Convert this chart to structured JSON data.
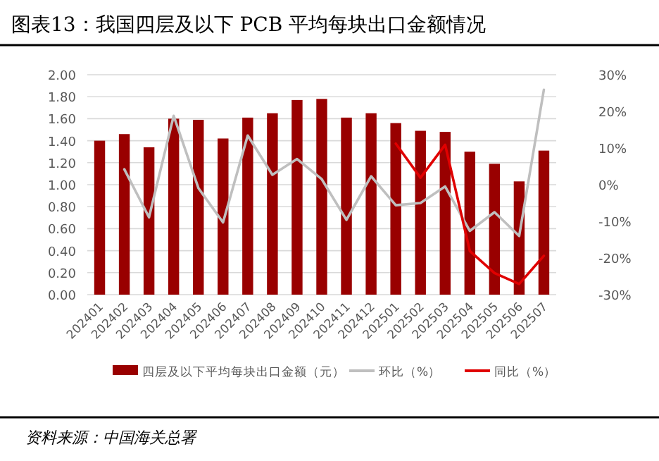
{
  "chart_data": {
    "type": "bar",
    "title": "图表13：我国四层及以下 PCB 平均每块出口金额情况",
    "categories": [
      "202401",
      "202402",
      "202403",
      "202404",
      "202405",
      "202406",
      "202407",
      "202408",
      "202409",
      "202410",
      "202411",
      "202412",
      "202501",
      "202502",
      "202503",
      "202504",
      "202505",
      "202506",
      "202507"
    ],
    "series": [
      {
        "name": "四层及以下平均每块出口金额（元）",
        "color": "#990000",
        "values": [
          1.4,
          1.46,
          1.34,
          1.6,
          1.59,
          1.42,
          1.61,
          1.65,
          1.77,
          1.78,
          1.61,
          1.65,
          1.56,
          1.49,
          1.48,
          1.3,
          1.19,
          1.03,
          1.31
        ]
      },
      {
        "name": "环比（%）",
        "type": "line",
        "axis": "y2",
        "color": "#bfbfbf",
        "values": [
          null,
          4.2,
          -8.9,
          18.8,
          -0.9,
          -10.3,
          13.4,
          2.7,
          7.0,
          1.5,
          -9.6,
          2.3,
          -5.6,
          -5.0,
          -0.5,
          -12.6,
          -7.5,
          -14.0,
          25.9
        ]
      },
      {
        "name": "同比（%）",
        "type": "line",
        "axis": "y2",
        "color": "#e00000",
        "values": [
          null,
          null,
          null,
          null,
          null,
          null,
          null,
          null,
          null,
          null,
          null,
          null,
          11.2,
          1.9,
          10.9,
          -18.1,
          -24.1,
          -27.1,
          -19.4
        ]
      }
    ],
    "ylim": [
      0,
      2
    ],
    "yticks": [
      {
        "value": 0,
        "label": "0.00"
      },
      {
        "value": 0.2,
        "label": "0.20"
      },
      {
        "value": 0.4,
        "label": "0.40"
      },
      {
        "value": 0.6,
        "label": "0.60"
      },
      {
        "value": 0.8,
        "label": "0.80"
      },
      {
        "value": 1,
        "label": "1.00"
      },
      {
        "value": 1.2,
        "label": "1.20"
      },
      {
        "value": 1.4,
        "label": "1.40"
      },
      {
        "value": 1.6,
        "label": "1.60"
      },
      {
        "value": 1.8,
        "label": "1.80"
      },
      {
        "value": 2,
        "label": "2.00"
      }
    ],
    "y2lim": [
      -30,
      30
    ],
    "y2ticks": [
      {
        "value": -30,
        "label": "-30%"
      },
      {
        "value": -20,
        "label": "-20%"
      },
      {
        "value": -10,
        "label": "-10%"
      },
      {
        "value": 0,
        "label": "0%"
      },
      {
        "value": 10,
        "label": "10%"
      },
      {
        "value": 20,
        "label": "20%"
      },
      {
        "value": 30,
        "label": "30%"
      }
    ],
    "grid": "y",
    "legend": "bottom",
    "annotations": [
      "资料来源：中国海关总署"
    ]
  }
}
